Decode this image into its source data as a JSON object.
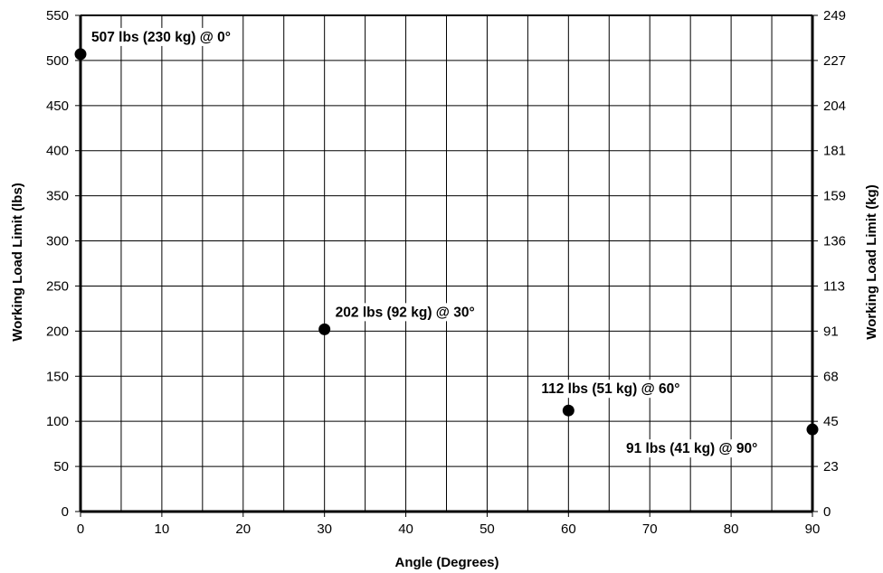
{
  "chart_data": {
    "type": "scatter",
    "title": "",
    "xlabel": "Angle (Degrees)",
    "ylabel": "Working Load Limit (lbs)",
    "y2label": "Working Load Limit (kg)",
    "xlim": [
      0,
      90
    ],
    "ylim": [
      0,
      550
    ],
    "x_ticks": [
      "0",
      "10",
      "20",
      "30",
      "40",
      "50",
      "60",
      "70",
      "80",
      "90"
    ],
    "y_ticks": [
      "0",
      "50",
      "100",
      "150",
      "200",
      "250",
      "300",
      "350",
      "400",
      "450",
      "500",
      "550"
    ],
    "y2_ticks": [
      "0",
      "23",
      "45",
      "68",
      "91",
      "113",
      "136",
      "159",
      "181",
      "204",
      "227",
      "249"
    ],
    "grid": true,
    "points": [
      {
        "x": 0,
        "y": 507,
        "label": "507 lbs (230 kg) @ 0°"
      },
      {
        "x": 30,
        "y": 202,
        "label": "202 lbs (92 kg) @ 30°"
      },
      {
        "x": 60,
        "y": 112,
        "label": "112 lbs (51 kg) @ 60°"
      },
      {
        "x": 90,
        "y": 91,
        "label": "91 lbs (41 kg) @ 90°"
      }
    ]
  }
}
